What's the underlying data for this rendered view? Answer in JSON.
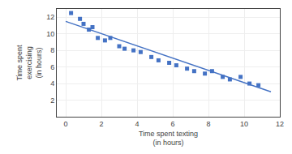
{
  "chart_data": {
    "type": "scatter",
    "xlabel": "Time spent texting\n(in hours)",
    "ylabel": "Time spent\nexercising\n(in hours)",
    "xlim": [
      -0.5,
      12
    ],
    "ylim": [
      0,
      13
    ],
    "xticks": [
      0,
      2,
      4,
      6,
      8,
      10,
      12
    ],
    "yticks": [
      2,
      4,
      6,
      8,
      10,
      12
    ],
    "grid": true,
    "series": [
      {
        "type": "scatter",
        "color": "#4472c4",
        "marker": "square",
        "x": [
          0.3,
          0.8,
          1.0,
          1.3,
          1.5,
          1.8,
          2.2,
          2.5,
          3.0,
          3.3,
          3.8,
          4.2,
          4.8,
          5.2,
          5.8,
          6.2,
          6.8,
          7.2,
          7.8,
          8.2,
          8.8,
          9.2,
          9.8,
          10.3,
          10.8
        ],
        "values": [
          12.5,
          11.8,
          11.2,
          10.5,
          10.8,
          9.5,
          9.2,
          9.5,
          8.5,
          8.2,
          8.0,
          7.8,
          7.2,
          6.8,
          6.5,
          6.2,
          5.8,
          5.5,
          5.2,
          5.5,
          4.8,
          4.5,
          4.8,
          4.0,
          3.8
        ]
      },
      {
        "type": "line",
        "color": "#4472c4",
        "line_style": "solid",
        "x": [
          0.0,
          11.5
        ],
        "values": [
          11.5,
          3.0
        ]
      }
    ]
  }
}
